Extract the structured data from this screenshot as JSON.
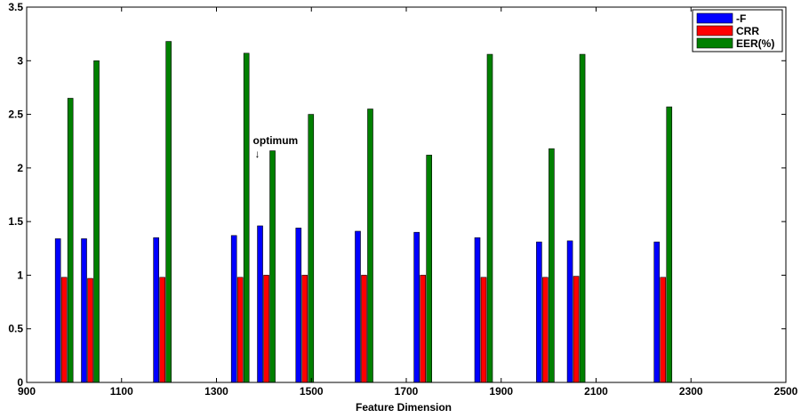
{
  "chart_data": {
    "type": "bar",
    "title": "",
    "xlabel": "Feature Dimension",
    "ylabel": "",
    "xlim": [
      900,
      2500
    ],
    "ylim": [
      0,
      3.5
    ],
    "xticks": [
      "900",
      "1100",
      "1300",
      "1500",
      "1700",
      "1900",
      "2100",
      "2300",
      "2500"
    ],
    "yticks": [
      "0",
      "0.5",
      "1",
      "1.5",
      "2",
      "2.5",
      "3",
      "3.5"
    ],
    "grid": false,
    "legend_position": "top-right",
    "x": [
      979,
      1034,
      1186,
      1350,
      1405,
      1486,
      1611,
      1735,
      1863,
      1993,
      2058,
      2241
    ],
    "series": [
      {
        "name": "-F",
        "color": "#0000ff",
        "values": [
          1.34,
          1.34,
          1.35,
          1.37,
          1.46,
          1.44,
          1.41,
          1.4,
          1.35,
          1.31,
          1.32,
          1.31
        ]
      },
      {
        "name": "CRR",
        "color": "#ff0000",
        "values": [
          0.98,
          0.97,
          0.98,
          0.98,
          1.0,
          1.0,
          1.0,
          1.0,
          0.98,
          0.98,
          0.99,
          0.98
        ]
      },
      {
        "name": "EER(%)",
        "color": "#008000",
        "values": [
          2.65,
          3.0,
          3.18,
          3.07,
          2.16,
          2.5,
          2.55,
          2.12,
          3.06,
          2.18,
          3.06,
          2.57
        ]
      }
    ],
    "annotation": {
      "text": "optimum",
      "arrow": "↓",
      "x": 1405
    }
  }
}
